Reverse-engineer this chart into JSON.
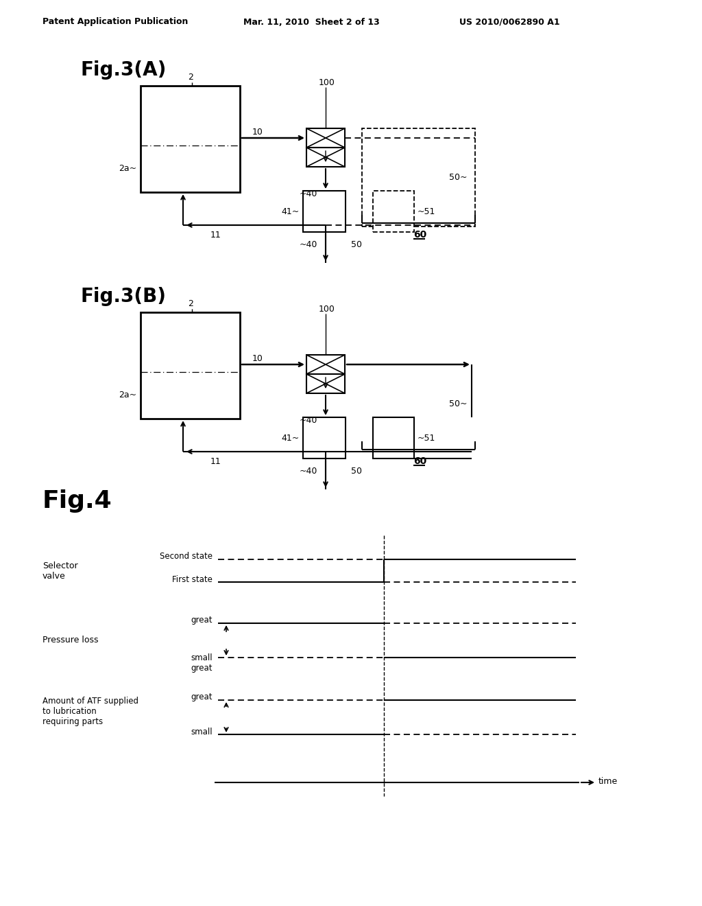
{
  "background_color": "#ffffff",
  "header_left": "Patent Application Publication",
  "header_mid": "Mar. 11, 2010  Sheet 2 of 13",
  "header_right": "US 2010/0062890 A1",
  "fig3A_title": "Fig.3(A)",
  "fig3B_title": "Fig.3(B)",
  "fig4_title": "Fig.4",
  "label_2": "2",
  "label_2a": "2a",
  "label_10": "10",
  "label_11": "11",
  "label_40": "40",
  "label_41": "41",
  "label_50": "50",
  "label_51": "51",
  "label_60": "60",
  "label_100": "100",
  "fig4_selector_valve": "Selector\nvalve",
  "fig4_second_state": "Second state",
  "fig4_first_state": "First state",
  "fig4_pressure_loss": "Pressure loss",
  "fig4_great1": "great",
  "fig4_small1": "small",
  "fig4_great2": "great",
  "fig4_atf_label": "Amount of ATF supplied\nto lubrication\nrequiring parts",
  "fig4_small2": "small",
  "fig4_time": "time"
}
